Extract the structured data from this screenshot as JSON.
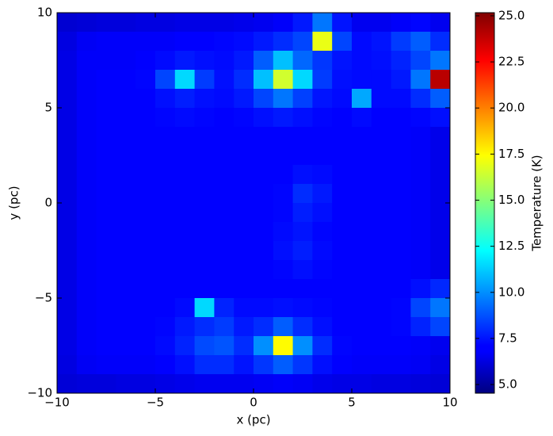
{
  "chart_data": {
    "type": "heatmap",
    "colormap": "jet",
    "x_label": "x (pc)",
    "y_label": "y (pc)",
    "colorbar_label": "Temperature (K)",
    "xlim": [
      -10,
      10
    ],
    "ylim": [
      -10,
      10
    ],
    "xticks": [
      {
        "value": -10,
        "label": "−10"
      },
      {
        "value": -5,
        "label": "−5"
      },
      0,
      5,
      10
    ],
    "yticks": [
      {
        "value": -10,
        "label": "−10"
      },
      {
        "value": -5,
        "label": "−5"
      },
      0,
      5,
      10
    ],
    "clim": [
      4.53,
      25.17
    ],
    "cticks": [
      {
        "value": 5,
        "label": "5.0"
      },
      {
        "value": 7.5,
        "label": "7.5"
      },
      {
        "value": 10,
        "label": "10.0"
      },
      {
        "value": 12.5,
        "label": "12.5"
      },
      {
        "value": 15,
        "label": "15.0"
      },
      {
        "value": 17.5,
        "label": "17.5"
      },
      {
        "value": 20,
        "label": "20.0"
      },
      {
        "value": 22.5,
        "label": "22.5"
      },
      {
        "value": 25,
        "label": "25.0"
      }
    ],
    "z": [
      [
        6.2,
        6.3,
        6.4,
        6.4,
        6.5,
        6.5,
        6.6,
        6.6,
        6.6,
        6.7,
        6.8,
        7.0,
        7.6,
        9.5,
        7.5,
        6.8,
        6.8,
        7.0,
        7.2,
        6.8
      ],
      [
        6.5,
        6.9,
        7.0,
        7.0,
        7.0,
        7.0,
        7.1,
        7.1,
        7.2,
        7.3,
        7.6,
        8.0,
        8.5,
        17,
        8.5,
        7.3,
        7.5,
        8.3,
        9.0,
        8.0
      ],
      [
        6.6,
        7.0,
        7.0,
        7.0,
        7.1,
        7.3,
        7.6,
        7.4,
        7.3,
        7.6,
        9.0,
        11.0,
        9.2,
        8.2,
        7.5,
        7.3,
        7.4,
        7.8,
        8.5,
        9.5
      ],
      [
        6.6,
        7.0,
        7.1,
        7.1,
        7.2,
        8.5,
        11.5,
        8.3,
        7.4,
        8.0,
        11.0,
        16.5,
        11.5,
        8.3,
        7.4,
        7.3,
        7.3,
        7.6,
        9.5,
        24
      ],
      [
        6.6,
        7.0,
        7.1,
        7.1,
        7.1,
        7.4,
        7.7,
        7.4,
        7.3,
        7.6,
        8.5,
        9.5,
        8.4,
        7.5,
        7.3,
        10.5,
        7.3,
        7.3,
        8.0,
        9.0
      ],
      [
        6.6,
        7.0,
        7.1,
        7.1,
        7.1,
        7.2,
        7.3,
        7.2,
        7.1,
        7.2,
        7.4,
        7.6,
        7.4,
        7.2,
        7.1,
        7.3,
        7.1,
        7.1,
        7.2,
        7.4
      ],
      [
        6.6,
        7.0,
        7.1,
        7.1,
        7.1,
        7.1,
        7.1,
        7.1,
        7.1,
        7.1,
        7.1,
        7.1,
        7.1,
        7.1,
        7.1,
        7.1,
        7.1,
        7.1,
        7.0,
        6.7
      ],
      [
        6.6,
        7.0,
        7.1,
        7.1,
        7.1,
        7.1,
        7.1,
        7.1,
        7.1,
        7.1,
        7.1,
        7.1,
        7.1,
        7.1,
        7.1,
        7.1,
        7.1,
        7.1,
        7.0,
        6.7
      ],
      [
        6.6,
        7.0,
        7.1,
        7.1,
        7.1,
        7.1,
        7.1,
        7.1,
        7.1,
        7.1,
        7.1,
        7.1,
        7.4,
        7.3,
        7.1,
        7.1,
        7.1,
        7.1,
        7.0,
        6.7
      ],
      [
        6.6,
        7.0,
        7.1,
        7.1,
        7.1,
        7.1,
        7.1,
        7.1,
        7.1,
        7.1,
        7.1,
        7.2,
        8.0,
        7.6,
        7.1,
        7.1,
        7.1,
        7.1,
        7.0,
        6.7
      ],
      [
        6.6,
        7.0,
        7.1,
        7.1,
        7.1,
        7.1,
        7.1,
        7.1,
        7.1,
        7.1,
        7.1,
        7.2,
        7.7,
        7.4,
        7.1,
        7.1,
        7.1,
        7.1,
        7.0,
        6.7
      ],
      [
        6.6,
        7.0,
        7.1,
        7.1,
        7.1,
        7.1,
        7.1,
        7.1,
        7.1,
        7.1,
        7.1,
        7.3,
        7.5,
        7.2,
        7.1,
        7.1,
        7.1,
        7.1,
        7.0,
        6.7
      ],
      [
        6.6,
        7.0,
        7.1,
        7.1,
        7.1,
        7.1,
        7.1,
        7.1,
        7.1,
        7.1,
        7.1,
        7.4,
        7.7,
        7.3,
        7.1,
        7.1,
        7.1,
        7.1,
        7.0,
        6.7
      ],
      [
        6.6,
        7.0,
        7.1,
        7.1,
        7.1,
        7.1,
        7.1,
        7.1,
        7.1,
        7.1,
        7.1,
        7.2,
        7.4,
        7.2,
        7.1,
        7.1,
        7.1,
        7.1,
        7.0,
        6.7
      ],
      [
        6.6,
        7.0,
        7.1,
        7.1,
        7.1,
        7.1,
        7.1,
        7.1,
        7.1,
        7.1,
        7.1,
        7.1,
        7.1,
        7.1,
        7.1,
        7.1,
        7.1,
        7.1,
        7.4,
        7.9
      ],
      [
        6.6,
        7.0,
        7.1,
        7.1,
        7.1,
        7.1,
        7.3,
        11.5,
        7.8,
        7.3,
        7.3,
        7.4,
        7.3,
        7.2,
        7.1,
        7.1,
        7.1,
        7.2,
        8.5,
        9.5
      ],
      [
        6.6,
        7.0,
        7.1,
        7.1,
        7.1,
        7.2,
        7.6,
        8.0,
        8.3,
        7.6,
        8.0,
        9.0,
        8.0,
        7.4,
        7.1,
        7.1,
        7.1,
        7.2,
        7.8,
        8.5
      ],
      [
        6.6,
        7.0,
        7.1,
        7.1,
        7.1,
        7.3,
        7.8,
        8.6,
        8.8,
        8.0,
        10.0,
        17.5,
        10.0,
        8.0,
        7.2,
        7.1,
        7.1,
        7.1,
        7.0,
        6.8
      ],
      [
        6.5,
        6.9,
        7.0,
        7.0,
        7.0,
        7.1,
        7.4,
        8.0,
        8.0,
        7.5,
        8.2,
        9.0,
        8.2,
        7.4,
        7.1,
        7.0,
        7.0,
        7.0,
        6.9,
        6.6
      ],
      [
        6.3,
        6.4,
        6.4,
        6.5,
        6.5,
        6.6,
        6.7,
        6.8,
        6.8,
        6.8,
        6.9,
        7.0,
        6.9,
        6.7,
        6.6,
        6.6,
        6.5,
        6.5,
        6.4,
        6.3
      ]
    ]
  }
}
